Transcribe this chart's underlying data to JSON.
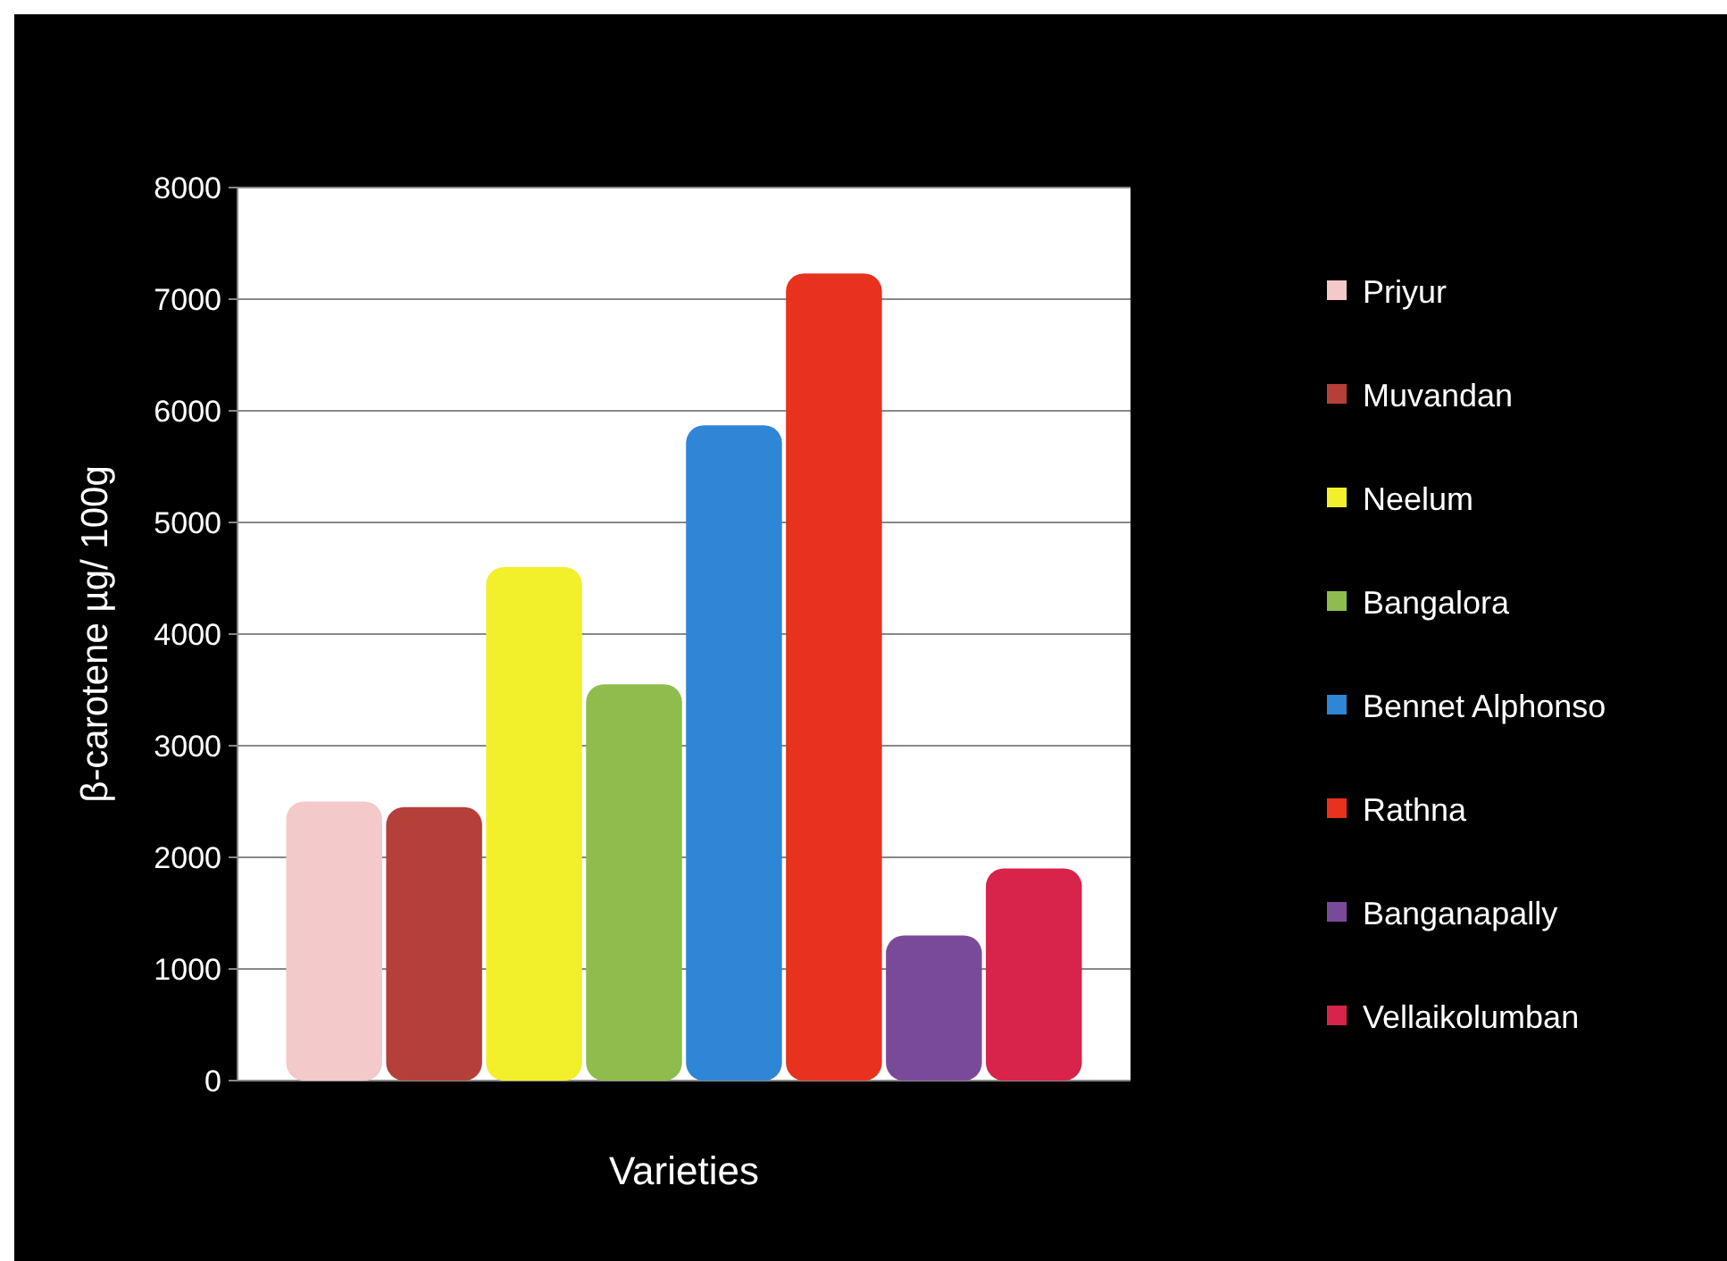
{
  "chart_data": {
    "type": "bar",
    "xlabel": "Varieties",
    "ylabel": "β-carotene µg/ 100g",
    "categories": [
      null
    ],
    "series": [
      {
        "name": "Priyur",
        "color": "#f4c9c9",
        "values": [
          2500
        ]
      },
      {
        "name": "Muvandan",
        "color": "#b5403a",
        "values": [
          2450
        ]
      },
      {
        "name": "Neelum",
        "color": "#f2f02a",
        "values": [
          4600
        ]
      },
      {
        "name": "Bangalora",
        "color": "#8fbd4d",
        "values": [
          3550
        ]
      },
      {
        "name": "Bennet Alphonso",
        "color": "#2f86d6",
        "values": [
          5870
        ]
      },
      {
        "name": "Rathna",
        "color": "#e8321e",
        "values": [
          7230
        ]
      },
      {
        "name": "Banganapally",
        "color": "#7a4a9a",
        "values": [
          1300
        ]
      },
      {
        "name": "Vellaikolumban",
        "color": "#d8234a",
        "values": [
          1900
        ]
      }
    ],
    "ylim": [
      0,
      8000
    ],
    "yticks": [
      0,
      1000,
      2000,
      3000,
      4000,
      5000,
      6000,
      7000,
      8000
    ],
    "grid": "y",
    "legend": "right"
  }
}
